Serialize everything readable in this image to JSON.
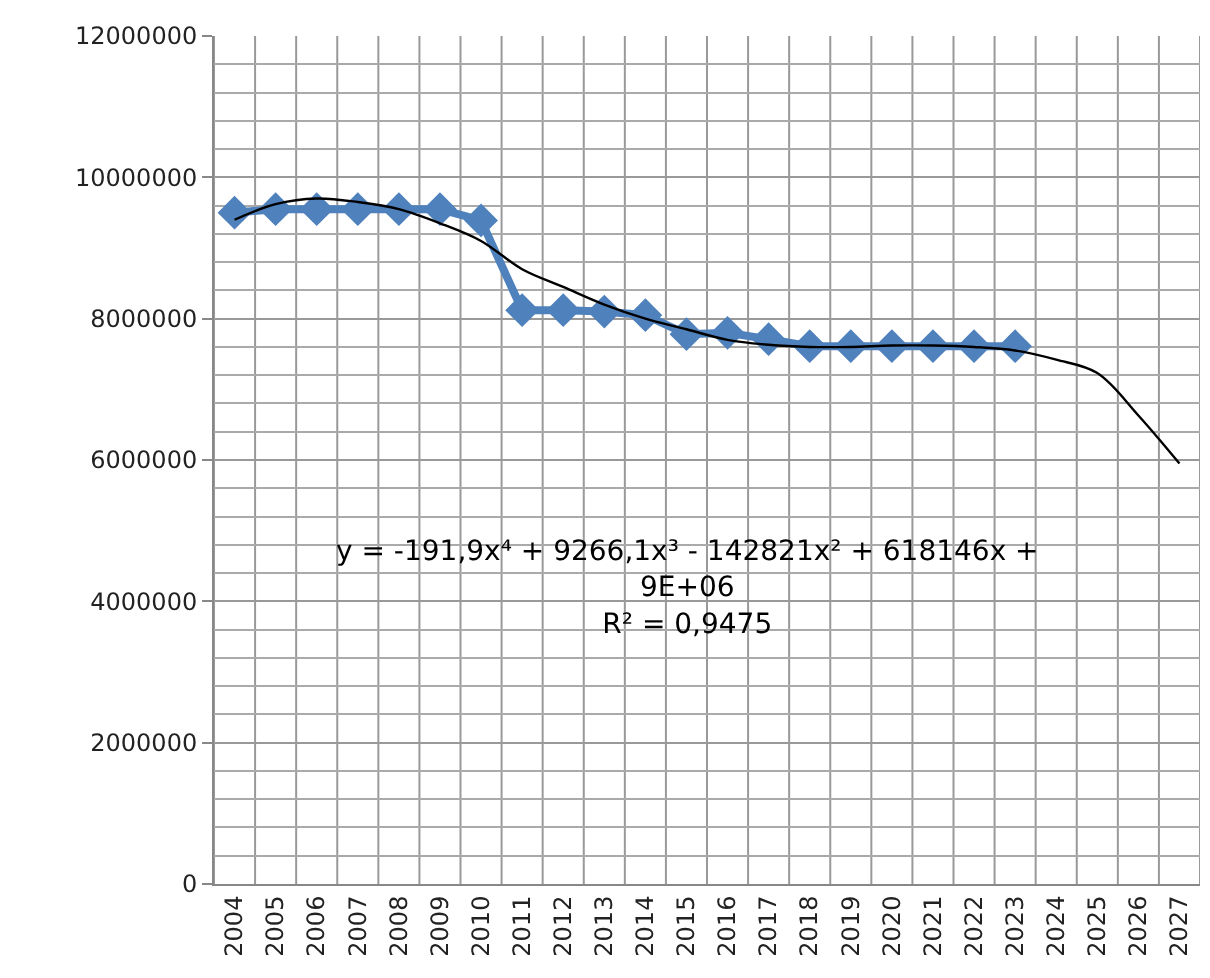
{
  "chart_data": {
    "type": "line",
    "categories": [
      "2004",
      "2005",
      "2006",
      "2007",
      "2008",
      "2009",
      "2010",
      "2011",
      "2012",
      "2013",
      "2014",
      "2015",
      "2016",
      "2017",
      "2018",
      "2019",
      "2020",
      "2021",
      "2022",
      "2023",
      "2024",
      "2025",
      "2026",
      "2027"
    ],
    "series": [
      {
        "color": "#4f81bd",
        "marker": "diamond",
        "values": [
          9500000,
          9550000,
          9550000,
          9550000,
          9550000,
          9550000,
          9390000,
          8120000,
          8120000,
          8100000,
          8050000,
          7780000,
          7800000,
          7710000,
          7610000,
          7610000,
          7610000,
          7610000,
          7610000,
          7610000,
          null,
          null,
          null,
          null
        ]
      },
      {
        "type": "line",
        "color": "#000000",
        "marker": "none",
        "values": [
          9400000,
          9620000,
          9700000,
          9650000,
          9550000,
          9350000,
          9100000,
          8700000,
          8450000,
          8200000,
          8000000,
          7850000,
          7700000,
          7630000,
          7600000,
          7600000,
          7620000,
          7620000,
          7600000,
          7550000,
          7420000,
          7230000,
          6630000,
          5950000
        ]
      }
    ],
    "ylim": [
      0,
      12000000
    ],
    "yticks": [
      0,
      2000000,
      4000000,
      6000000,
      8000000,
      10000000,
      12000000
    ],
    "grid": true,
    "annotations": [
      "y = -191,9x⁴ + 9266,1x³ - 142821x² + 618146x +\n9E+06\nR² = 0,9475"
    ]
  }
}
